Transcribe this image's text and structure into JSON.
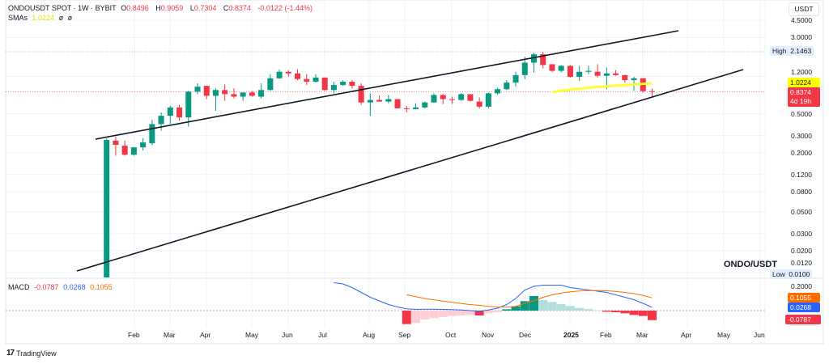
{
  "header": {
    "symbol": "ONDOUSDT SPOT · 1W · BYBIT",
    "open_label": "O",
    "open": "0.8496",
    "high_label": "H",
    "high": "0.9059",
    "low_label": "L",
    "low": "0.7304",
    "close_label": "C",
    "close": "0.8374",
    "change": "-0.0122 (-1.44%)",
    "sma_label": "SMAs",
    "sma_value": "1.0224",
    "sma_extra1": "ø",
    "sma_extra2": "ø"
  },
  "currency": "USDT",
  "pair_label": "ONDO/USDT",
  "price_axis": {
    "ticks": [
      "4.5000",
      "3.0000",
      "1.2000",
      "0.5000",
      "0.3000",
      "0.2000",
      "0.1200",
      "0.0800",
      "0.0500",
      "0.0300",
      "0.0200",
      "0.0120"
    ],
    "high_label": "High",
    "high_value": "2.1463",
    "low_label": "Low",
    "low_value": "0.0100",
    "sma_value": "1.0224",
    "last_price": "0.8374",
    "countdown": "4d 19h"
  },
  "macd": {
    "label": "MACD",
    "hist_value": "-0.0787",
    "macd_value": "0.0268",
    "signal_value": "0.1055",
    "axis_tick": "0.2000"
  },
  "time_axis": [
    "Feb",
    "Mar",
    "Apr",
    "May",
    "Jun",
    "Jul",
    "Aug",
    "Sep",
    "Oct",
    "Nov",
    "Dec",
    "2025",
    "Feb",
    "Mar",
    "Apr",
    "May",
    "Jun"
  ],
  "branding": "TradingView",
  "colors": {
    "up": "#089981",
    "down": "#f23645",
    "sma": "#ffff33",
    "macd": "#2962ff",
    "signal": "#ff6d00",
    "trendline": "#131722"
  },
  "chart_data": {
    "type": "candlestick",
    "scale": "log",
    "interval": "1W",
    "ohlc": [
      [
        0.0105,
        0.28,
        0.01,
        0.27
      ],
      [
        0.266,
        0.293,
        0.187,
        0.241
      ],
      [
        0.236,
        0.266,
        0.187,
        0.191
      ],
      [
        0.191,
        0.227,
        0.187,
        0.227
      ],
      [
        0.227,
        0.282,
        0.21,
        0.255
      ],
      [
        0.25,
        0.433,
        0.241,
        0.392
      ],
      [
        0.392,
        0.516,
        0.336,
        0.477
      ],
      [
        0.477,
        0.603,
        0.392,
        0.58
      ],
      [
        0.58,
        0.615,
        0.424,
        0.459
      ],
      [
        0.459,
        0.856,
        0.37,
        0.84
      ],
      [
        0.84,
        1.02,
        0.792,
        0.944
      ],
      [
        0.963,
        0.963,
        0.705,
        0.762
      ],
      [
        0.762,
        0.908,
        0.536,
        0.873
      ],
      [
        0.873,
        1.0,
        0.678,
        0.792
      ],
      [
        0.792,
        0.908,
        0.718,
        0.747
      ],
      [
        0.747,
        0.824,
        0.678,
        0.824
      ],
      [
        0.824,
        0.856,
        0.747,
        0.762
      ],
      [
        0.747,
        1.02,
        0.718,
        0.873
      ],
      [
        0.873,
        1.27,
        0.856,
        1.15
      ],
      [
        1.15,
        1.42,
        1.13,
        1.34
      ],
      [
        1.34,
        1.39,
        1.19,
        1.29
      ],
      [
        1.29,
        1.42,
        1.1,
        1.13
      ],
      [
        1.13,
        1.27,
        0.982,
        1.06
      ],
      [
        1.06,
        1.27,
        1.04,
        1.17
      ],
      [
        1.17,
        1.17,
        0.856,
        0.873
      ],
      [
        0.873,
        1.06,
        0.808,
        0.982
      ],
      [
        0.982,
        1.1,
        0.963,
        1.06
      ],
      [
        1.06,
        1.1,
        0.908,
        0.963
      ],
      [
        0.963,
        1.02,
        0.615,
        0.652
      ],
      [
        0.652,
        0.808,
        0.477,
        0.691
      ],
      [
        0.691,
        0.762,
        0.665,
        0.665
      ],
      [
        0.665,
        0.777,
        0.639,
        0.705
      ],
      [
        0.705,
        0.705,
        0.568,
        0.568
      ],
      [
        0.568,
        0.603,
        0.516,
        0.557
      ],
      [
        0.557,
        0.639,
        0.557,
        0.58
      ],
      [
        0.58,
        0.665,
        0.568,
        0.652
      ],
      [
        0.652,
        0.808,
        0.652,
        0.777
      ],
      [
        0.777,
        0.792,
        0.627,
        0.705
      ],
      [
        0.705,
        0.747,
        0.627,
        0.691
      ],
      [
        0.691,
        0.808,
        0.678,
        0.792
      ],
      [
        0.792,
        0.792,
        0.665,
        0.678
      ],
      [
        0.665,
        0.733,
        0.568,
        0.591
      ],
      [
        0.591,
        0.824,
        0.568,
        0.808
      ],
      [
        0.808,
        0.926,
        0.777,
        0.89
      ],
      [
        0.89,
        1.1,
        0.873,
        1.04
      ],
      [
        1.04,
        1.34,
        0.944,
        1.24
      ],
      [
        1.24,
        1.91,
        1.13,
        1.66
      ],
      [
        1.66,
        2.1,
        1.32,
        2.02
      ],
      [
        2.02,
        2.1463,
        1.45,
        1.57
      ],
      [
        1.6,
        1.6,
        1.34,
        1.37
      ],
      [
        1.37,
        1.57,
        1.32,
        1.54
      ],
      [
        1.54,
        1.57,
        1.17,
        1.19
      ],
      [
        1.19,
        1.54,
        1.08,
        1.34
      ],
      [
        1.34,
        1.54,
        1.27,
        1.37
      ],
      [
        1.34,
        1.6,
        1.17,
        1.22
      ],
      [
        1.22,
        1.48,
        0.89,
        1.29
      ],
      [
        1.29,
        1.39,
        1.22,
        1.24
      ],
      [
        1.24,
        1.24,
        1.04,
        1.1
      ],
      [
        1.1,
        1.19,
        0.856,
        1.15
      ],
      [
        1.15,
        1.15,
        0.824,
        0.8496
      ],
      [
        0.8496,
        0.9059,
        0.7304,
        0.8374
      ]
    ],
    "sma_start_index": 49,
    "sma": [
      0.83,
      0.86,
      0.88,
      0.9,
      0.92,
      0.94,
      0.95,
      0.97,
      0.98,
      0.99,
      1.01,
      1.0224
    ],
    "macd_start_index": 25,
    "macd_line": [
      0.23,
      0.22,
      0.19,
      0.15,
      0.11,
      0.08,
      0.05,
      0.03,
      0.015,
      0.01,
      0.012,
      0.012,
      0.01,
      0.008,
      0.005,
      0.0,
      -0.005,
      0.005,
      0.02,
      0.05,
      0.1,
      0.17,
      0.2,
      0.21,
      0.21,
      0.21,
      0.19,
      0.18,
      0.17,
      0.16,
      0.15,
      0.13,
      0.11,
      0.09,
      0.06,
      0.0268
    ],
    "signal_start_index": 33,
    "signal_line": [
      0.13,
      0.115,
      0.1,
      0.088,
      0.078,
      0.068,
      0.058,
      0.05,
      0.043,
      0.035,
      0.03,
      0.028,
      0.035,
      0.06,
      0.08,
      0.11,
      0.13,
      0.145,
      0.155,
      0.162,
      0.165,
      0.165,
      0.163,
      0.158,
      0.15,
      0.14,
      0.125,
      0.1055
    ],
    "hist_start_index": 33,
    "histogram": [
      -0.111,
      -0.102,
      -0.073,
      -0.062,
      -0.053,
      -0.044,
      -0.04,
      -0.036,
      -0.04,
      -0.022,
      -0.013,
      0.011,
      0.036,
      0.078,
      0.12,
      0.087,
      0.071,
      0.053,
      0.038,
      0.022,
      0.013,
      0.002,
      -0.009,
      -0.013,
      -0.022,
      -0.036,
      -0.044,
      -0.0787
    ]
  }
}
